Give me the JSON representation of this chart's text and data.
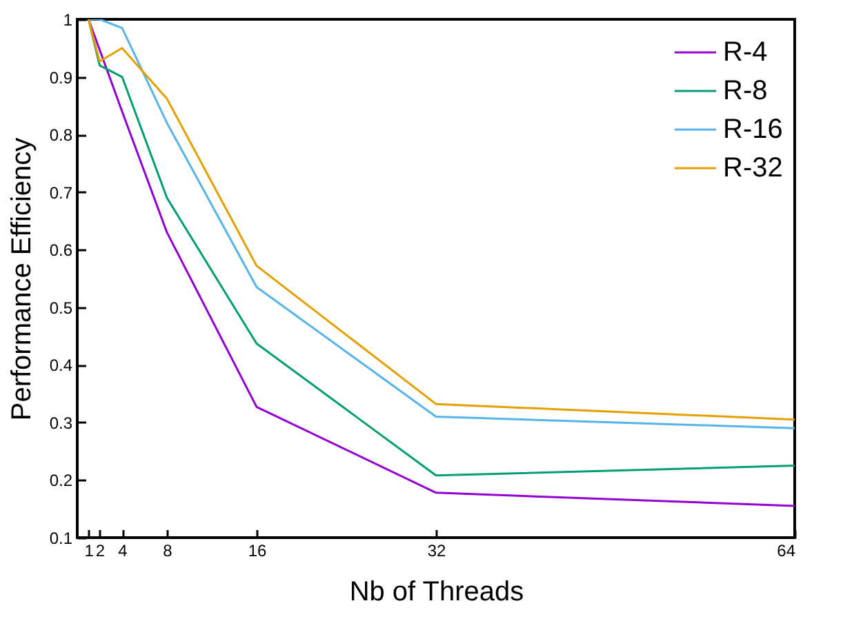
{
  "chart_data": {
    "type": "line",
    "xlabel": "Nb of Threads",
    "ylabel": "Performance Efficiency",
    "x": [
      1,
      2,
      4,
      8,
      16,
      32,
      64
    ],
    "series": [
      {
        "name": "R-4",
        "color": "#9400d3",
        "values": [
          1,
          0.947,
          0.84,
          0.63,
          0.327,
          0.178,
          0.155
        ]
      },
      {
        "name": "R-8",
        "color": "#009e73",
        "values": [
          1,
          0.92,
          0.9,
          0.69,
          0.437,
          0.208,
          0.225
        ]
      },
      {
        "name": "R-16",
        "color": "#56b4e9",
        "values": [
          1,
          1,
          0.985,
          0.82,
          0.535,
          0.31,
          0.29
        ]
      },
      {
        "name": "R-32",
        "color": "#e69f00",
        "values": [
          1,
          0.927,
          0.95,
          0.862,
          0.572,
          0.332,
          0.305
        ]
      }
    ],
    "xlim": [
      0,
      64
    ],
    "xticks": [
      1,
      2,
      4,
      8,
      16,
      32,
      64
    ],
    "ylim": [
      0.1,
      1
    ],
    "yticks": [
      0.1,
      0.2,
      0.3,
      0.4,
      0.5,
      0.6,
      0.7,
      0.8,
      0.9,
      1
    ],
    "grid": false,
    "legend": "top right",
    "marker": "none",
    "line_style": "solid"
  }
}
